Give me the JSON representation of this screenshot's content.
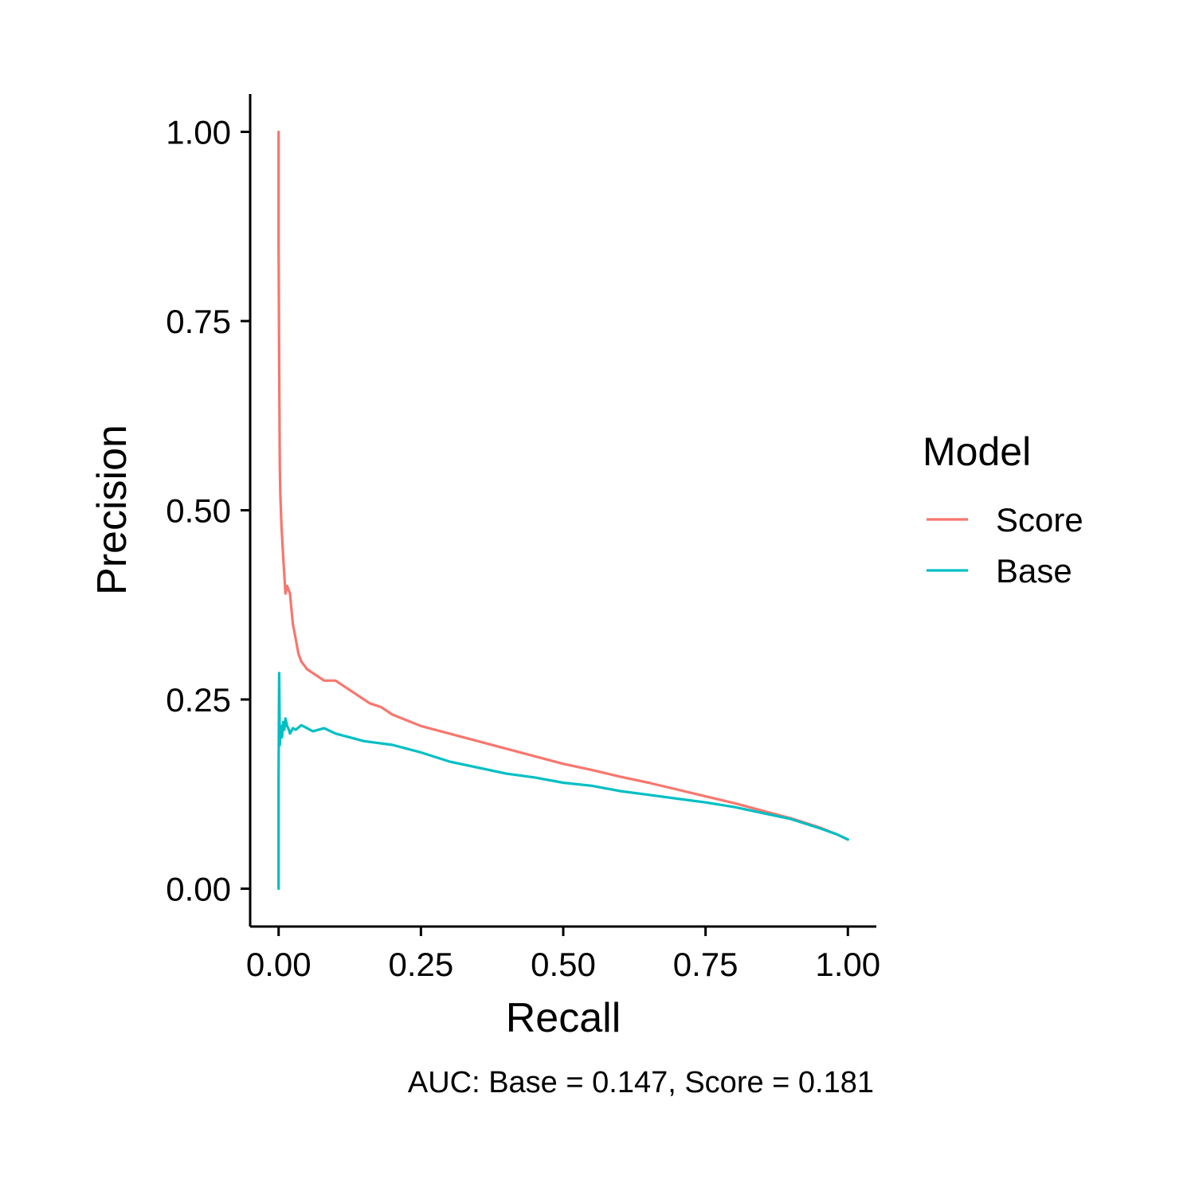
{
  "chart_data": {
    "type": "line",
    "xlabel": "Recall",
    "ylabel": "Precision",
    "caption": "AUC: Base = 0.147, Score = 0.181",
    "xlim": [
      -0.05,
      1.05
    ],
    "ylim": [
      -0.05,
      1.05
    ],
    "x_ticks": [
      "0.00",
      "0.25",
      "0.50",
      "0.75",
      "1.00"
    ],
    "y_ticks": [
      "0.00",
      "0.25",
      "0.50",
      "0.75",
      "1.00"
    ],
    "grid": false,
    "legend": {
      "title": "Model",
      "position": "right"
    },
    "series": [
      {
        "name": "Score",
        "color": "#F8766D",
        "x": [
          0.0,
          0.0,
          0.001,
          0.002,
          0.003,
          0.005,
          0.008,
          0.012,
          0.015,
          0.02,
          0.025,
          0.03,
          0.035,
          0.04,
          0.05,
          0.06,
          0.07,
          0.08,
          0.1,
          0.12,
          0.14,
          0.16,
          0.18,
          0.2,
          0.25,
          0.3,
          0.35,
          0.4,
          0.45,
          0.5,
          0.55,
          0.6,
          0.65,
          0.7,
          0.75,
          0.8,
          0.85,
          0.9,
          0.95,
          0.98,
          1.0
        ],
        "y": [
          1.0,
          0.85,
          0.7,
          0.56,
          0.52,
          0.48,
          0.44,
          0.39,
          0.4,
          0.39,
          0.35,
          0.33,
          0.31,
          0.3,
          0.29,
          0.285,
          0.28,
          0.275,
          0.275,
          0.265,
          0.255,
          0.245,
          0.24,
          0.23,
          0.215,
          0.205,
          0.195,
          0.185,
          0.175,
          0.165,
          0.157,
          0.148,
          0.14,
          0.131,
          0.122,
          0.113,
          0.103,
          0.093,
          0.081,
          0.072,
          0.065
        ]
      },
      {
        "name": "Base",
        "color": "#00BFC4",
        "x": [
          0.0,
          0.0,
          0.001,
          0.002,
          0.004,
          0.006,
          0.008,
          0.01,
          0.012,
          0.015,
          0.018,
          0.02,
          0.025,
          0.03,
          0.04,
          0.05,
          0.06,
          0.08,
          0.1,
          0.15,
          0.2,
          0.25,
          0.3,
          0.35,
          0.4,
          0.45,
          0.5,
          0.55,
          0.6,
          0.65,
          0.7,
          0.75,
          0.8,
          0.85,
          0.9,
          0.95,
          0.98,
          1.0
        ],
        "y": [
          0.0,
          0.15,
          0.285,
          0.19,
          0.215,
          0.2,
          0.22,
          0.21,
          0.225,
          0.215,
          0.21,
          0.205,
          0.212,
          0.21,
          0.216,
          0.212,
          0.208,
          0.212,
          0.205,
          0.195,
          0.19,
          0.18,
          0.168,
          0.16,
          0.152,
          0.147,
          0.14,
          0.136,
          0.129,
          0.124,
          0.119,
          0.114,
          0.108,
          0.1,
          0.092,
          0.08,
          0.072,
          0.065
        ]
      }
    ]
  }
}
